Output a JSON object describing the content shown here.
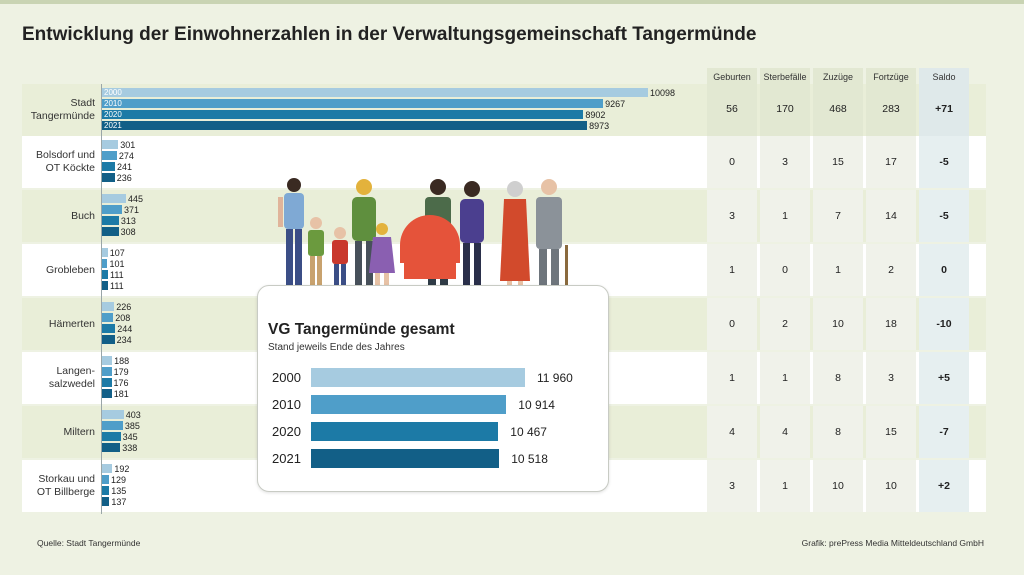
{
  "title": "Entwicklung der Einwohnerzahlen in der Verwaltungsgemeinschaft Tangermünde",
  "footer": {
    "source": "Quelle: Stadt Tangermünde",
    "credit": "Grafik: prePress Media Mitteldeutschland GmbH"
  },
  "colors": {
    "y2000": "#a6cbe0",
    "y2010": "#4f9ec9",
    "y2020": "#1c7aa6",
    "y2021": "#125f87"
  },
  "chart_data": [
    {
      "type": "bar",
      "orientation": "horizontal",
      "title": "Entwicklung der Einwohnerzahlen in der Verwaltungsgemeinschaft Tangermünde",
      "years": [
        "2000",
        "2010",
        "2020",
        "2021"
      ],
      "categories": [
        "Stadt\nTangermünde",
        "Bolsdorf und\nOT Köckte",
        "Buch",
        "Grobleben",
        "Hämerten",
        "Langen-\nsalzwedel",
        "Miltern",
        "Storkau und\nOT Billberge"
      ],
      "series": [
        {
          "name": "2000",
          "values": [
            10098,
            301,
            445,
            107,
            226,
            188,
            403,
            192
          ]
        },
        {
          "name": "2010",
          "values": [
            9267,
            274,
            371,
            101,
            208,
            179,
            385,
            129
          ]
        },
        {
          "name": "2020",
          "values": [
            8902,
            241,
            313,
            111,
            244,
            176,
            345,
            135
          ]
        },
        {
          "name": "2021",
          "values": [
            8973,
            236,
            308,
            111,
            234,
            181,
            338,
            137
          ]
        }
      ],
      "value_labels": [
        [
          "10098",
          "9267",
          "8902",
          "8973"
        ],
        [
          "301",
          "274",
          "241",
          "236"
        ],
        [
          "445",
          "371",
          "313",
          "308"
        ],
        [
          "107",
          "101",
          "111",
          "111"
        ],
        [
          "226",
          "208",
          "244",
          "234"
        ],
        [
          "188",
          "179",
          "176",
          "181"
        ],
        [
          "403",
          "385",
          "345",
          "338"
        ],
        [
          "192",
          "129",
          "135",
          "137"
        ]
      ]
    },
    {
      "type": "table",
      "columns": [
        "Geburten\n2021",
        "Sterbefälle\n2021",
        "Zuzüge\n2021",
        "Fortzüge\n2021",
        "Saldo\n2020/2021"
      ],
      "rows": [
        [
          "56",
          "170",
          "468",
          "283",
          "+71"
        ],
        [
          "0",
          "3",
          "15",
          "17",
          "-5"
        ],
        [
          "3",
          "1",
          "7",
          "14",
          "-5"
        ],
        [
          "1",
          "0",
          "1",
          "2",
          "0"
        ],
        [
          "0",
          "2",
          "10",
          "18",
          "-10"
        ],
        [
          "1",
          "1",
          "8",
          "3",
          "+5"
        ],
        [
          "4",
          "4",
          "8",
          "15",
          "-7"
        ],
        [
          "3",
          "1",
          "10",
          "10",
          "+2"
        ]
      ]
    },
    {
      "type": "bar",
      "orientation": "horizontal",
      "title": "VG Tangermünde gesamt",
      "subtitle": "Stand jeweils Ende des Jahres",
      "categories": [
        "2000",
        "2010",
        "2020",
        "2021"
      ],
      "values": [
        11960,
        10914,
        10467,
        10518
      ],
      "value_labels": [
        "11 960",
        "10 914",
        "10 467",
        "10 518"
      ]
    }
  ]
}
